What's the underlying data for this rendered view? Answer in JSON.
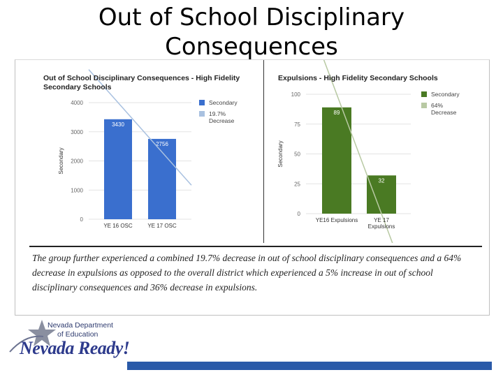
{
  "slide": {
    "title": "Out of School Disciplinary Consequences",
    "caption": "The group further experienced a combined 19.7% decrease in out of school disciplinary consequences and a 64% decrease in expulsions as opposed to the overall district which experienced a 5% increase in out of school disciplinary consequences and 36% decrease in expulsions."
  },
  "logo": {
    "line1": "Nevada Department",
    "line2": "of Education",
    "script": "Nevada Ready!"
  },
  "colors": {
    "left_bar": "#3a6fce",
    "left_trend": "#a9c1e0",
    "right_bar": "#4a7a23",
    "right_trend": "#b8c9a3",
    "footer_bar": "#2a5aa8"
  },
  "chart_data": [
    {
      "type": "bar",
      "title": "Out of School Disciplinary Consequences - High Fidelity Secondary Schools",
      "ylabel": "Secondary",
      "categories": [
        "YE 16 OSC",
        "YE 17 OSC"
      ],
      "series": [
        {
          "name": "Secondary",
          "values": [
            3430,
            2756
          ]
        }
      ],
      "trend": {
        "name": "19.7% Decrease",
        "from": [
          0,
          4000
        ],
        "to": [
          1,
          2300
        ]
      },
      "data_labels": [
        "3430",
        "2756"
      ],
      "ylim": [
        0,
        4000
      ],
      "yticks": [
        "0",
        "1000",
        "2000",
        "3000",
        "4000"
      ],
      "grid": true,
      "legend": "right"
    },
    {
      "type": "bar",
      "title": "Expulsions - High Fidelity Secondary Schools",
      "ylabel": "Secondary",
      "categories": [
        "YE16 Expulsions",
        "YE 17 Expulsions"
      ],
      "series": [
        {
          "name": "Secondary",
          "values": [
            89,
            32
          ]
        }
      ],
      "trend": {
        "name": "64% Decrease",
        "from": [
          0,
          100
        ],
        "to": [
          1,
          0
        ]
      },
      "data_labels": [
        "89",
        "32"
      ],
      "ylim": [
        0,
        100
      ],
      "yticks": [
        "0",
        "25",
        "50",
        "75",
        "100"
      ],
      "grid": true,
      "legend": "right"
    }
  ]
}
